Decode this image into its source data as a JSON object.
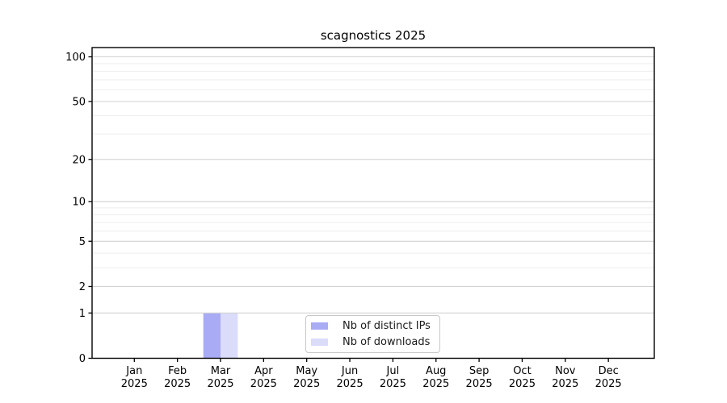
{
  "chart_data": {
    "type": "bar",
    "title": "scagnostics 2025",
    "xlabel": "",
    "ylabel": "",
    "categories": [
      "Jan",
      "Feb",
      "Mar",
      "Apr",
      "May",
      "Jun",
      "Jul",
      "Aug",
      "Sep",
      "Oct",
      "Nov",
      "Dec"
    ],
    "x_tick_year": "2025",
    "series": [
      {
        "name": "Nb of distinct IPs",
        "color": "#a9abf5",
        "values": [
          0,
          0,
          1,
          0,
          0,
          0,
          0,
          0,
          0,
          0,
          0,
          0
        ]
      },
      {
        "name": "Nb of downloads",
        "color": "#dbdcfa",
        "values": [
          0,
          0,
          1,
          0,
          0,
          0,
          0,
          0,
          0,
          0,
          0,
          0
        ]
      }
    ],
    "yscale": "log1p",
    "ylim": [
      0,
      115
    ],
    "y_major_ticks": [
      0,
      1,
      2,
      5,
      10,
      20,
      50,
      100
    ],
    "y_minor_ticks": [
      3,
      4,
      6,
      7,
      8,
      9,
      30,
      40,
      60,
      70,
      80,
      90
    ],
    "grid": true,
    "legend_position": "lower center inside"
  },
  "colors": {
    "background": "#ffffff",
    "spine": "#000000",
    "grid_major": "#d2d2d2",
    "grid_minor": "#ededed",
    "tick_text": "#000000",
    "legend_border": "#c8c8c8",
    "legend_text": "#1a1a1a"
  }
}
